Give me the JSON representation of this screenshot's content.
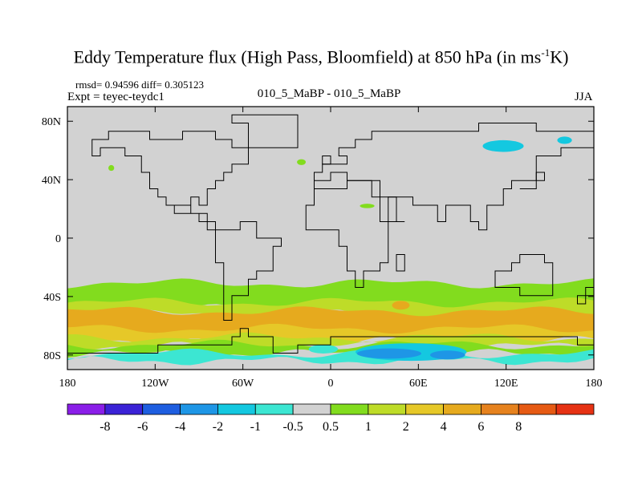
{
  "chart_data": {
    "type": "heatmap",
    "title_main": "Eddy Temperature flux (High Pass, Bloomfield) at 850 hPa (in ms",
    "title_sup": "-1",
    "title_end": "K)",
    "stats": "rmsd= 0.94596 diff= 0.305123",
    "experiment": "Expt = teyec-teydc1",
    "center_label": "010_5_MaBP - 010_5_MaBP",
    "season": "JJA",
    "xlim": [
      -180,
      180
    ],
    "ylim": [
      -90,
      90
    ],
    "x_ticks": [
      {
        "value": -180,
        "label": "180"
      },
      {
        "value": -120,
        "label": "120W"
      },
      {
        "value": -60,
        "label": "60W"
      },
      {
        "value": 0,
        "label": "0"
      },
      {
        "value": 60,
        "label": "60E"
      },
      {
        "value": 120,
        "label": "120E"
      },
      {
        "value": 180,
        "label": "180"
      }
    ],
    "y_ticks": [
      {
        "value": 80,
        "label": "80N"
      },
      {
        "value": 40,
        "label": "40N"
      },
      {
        "value": 0,
        "label": "0"
      },
      {
        "value": -40,
        "label": "40S"
      },
      {
        "value": -80,
        "label": "80S"
      }
    ],
    "colorbar": {
      "colors": [
        "#8a1ee8",
        "#3b22d6",
        "#1e5ee0",
        "#1e96e6",
        "#14c8e0",
        "#3ce6d2",
        "#d2d2d2",
        "#82dc1e",
        "#bedc28",
        "#e6c828",
        "#e6aa1e",
        "#e6821e",
        "#e65a14",
        "#e63214"
      ],
      "labels": [
        "-8",
        "-6",
        "-4",
        "-2",
        "-1",
        "-0.5",
        "0.5",
        "1",
        "2",
        "4",
        "6",
        "8"
      ]
    },
    "bands": [
      {
        "name": "southern-green-band",
        "lat_top": -31,
        "lat_bottom": -48,
        "color": "#82dc1e"
      },
      {
        "name": "southern-yellow-band",
        "lat_top": -44,
        "lat_bottom": -52,
        "color": "#bedc28"
      },
      {
        "name": "southern-orange-band",
        "lat_top": -50,
        "lat_bottom": -66,
        "color": "#e6aa1e"
      },
      {
        "name": "southern-light-orange-band",
        "lat_top": -62,
        "lat_bottom": -70,
        "color": "#e6c828"
      },
      {
        "name": "southern-yellow-green-band",
        "lat_top": -68,
        "lat_bottom": -74,
        "color": "#bedc28"
      },
      {
        "name": "antarctic-green-band",
        "lat_top": -73,
        "lat_bottom": -79,
        "color": "#82dc1e"
      },
      {
        "name": "antarctic-cyan-band",
        "lat_top": -79,
        "lat_bottom": -84,
        "color": "#3ce6d2"
      }
    ],
    "patches": [
      {
        "name": "cyan-negative-siberia",
        "lon": 118,
        "lat": 63,
        "rlon": 14,
        "rlat": 4,
        "color": "#14c8e0"
      },
      {
        "name": "cyan-negative-arctic-east",
        "lon": 160,
        "lat": 67,
        "rlon": 5,
        "rlat": 2.5,
        "color": "#14c8e0"
      },
      {
        "name": "green-positive-north-atlantic",
        "lon": -20,
        "lat": 52,
        "rlon": 3,
        "rlat": 2,
        "color": "#82dc1e"
      },
      {
        "name": "green-positive-north-america",
        "lon": -150,
        "lat": 48,
        "rlon": 2,
        "rlat": 2,
        "color": "#82dc1e"
      },
      {
        "name": "green-positive-mediterranean",
        "lon": 25,
        "lat": 22,
        "rlon": 5,
        "rlat": 1.5,
        "color": "#82dc1e"
      },
      {
        "name": "orange-positive-indian-ocean",
        "lon": 48,
        "lat": -46,
        "rlon": 6,
        "rlat": 3,
        "color": "#e6aa1e"
      },
      {
        "name": "cyan-negative-antarctica",
        "lon": 55,
        "lat": -78,
        "rlon": 38,
        "rlat": 6,
        "color": "#14c8e0"
      },
      {
        "name": "blue-negative-antarctica",
        "lon": 40,
        "lat": -79,
        "rlon": 22,
        "rlat": 3.5,
        "color": "#1e96e6"
      },
      {
        "name": "blue-negative-antarctica-east",
        "lon": 80,
        "lat": -80,
        "rlon": 12,
        "rlat": 3,
        "color": "#1e96e6"
      },
      {
        "name": "cyan-negative-ross-sea",
        "lon": -5,
        "lat": -76,
        "rlon": 10,
        "rlat": 3,
        "color": "#3ce6d2"
      },
      {
        "name": "green-positive-antarctic-coast",
        "lon": -130,
        "lat": -76,
        "rlon": 18,
        "rlat": 2.5,
        "color": "#82dc1e"
      }
    ],
    "continents": [
      {
        "name": "north-america-outline",
        "points": [
          [
            -165,
            66
          ],
          [
            -150,
            71
          ],
          [
            -125,
            70
          ],
          [
            -100,
            74
          ],
          [
            -80,
            70
          ],
          [
            -65,
            60
          ],
          [
            -55,
            52
          ],
          [
            -65,
            45
          ],
          [
            -75,
            40
          ],
          [
            -80,
            32
          ],
          [
            -82,
            25
          ],
          [
            -90,
            29
          ],
          [
            -97,
            25
          ],
          [
            -105,
            20
          ],
          [
            -95,
            16
          ],
          [
            -85,
            12
          ],
          [
            -78,
            8
          ],
          [
            -82,
            9
          ],
          [
            -90,
            15
          ],
          [
            -105,
            22
          ],
          [
            -115,
            30
          ],
          [
            -120,
            36
          ],
          [
            -125,
            45
          ],
          [
            -130,
            55
          ],
          [
            -140,
            60
          ],
          [
            -155,
            58
          ],
          [
            -165,
            62
          ]
        ]
      },
      {
        "name": "south-america-outline",
        "points": [
          [
            -78,
            8
          ],
          [
            -60,
            10
          ],
          [
            -50,
            0
          ],
          [
            -35,
            -7
          ],
          [
            -40,
            -22
          ],
          [
            -48,
            -28
          ],
          [
            -58,
            -38
          ],
          [
            -65,
            -48
          ],
          [
            -70,
            -55
          ],
          [
            -75,
            -50
          ],
          [
            -74,
            -38
          ],
          [
            -72,
            -18
          ],
          [
            -80,
            -5
          ]
        ]
      },
      {
        "name": "greenland-outline",
        "points": [
          [
            -55,
            60
          ],
          [
            -42,
            60
          ],
          [
            -22,
            70
          ],
          [
            -20,
            82
          ],
          [
            -50,
            84
          ],
          [
            -70,
            78
          ],
          [
            -58,
            70
          ]
        ]
      },
      {
        "name": "eurasia-outline",
        "points": [
          [
            -10,
            36
          ],
          [
            -10,
            44
          ],
          [
            -5,
            48
          ],
          [
            5,
            52
          ],
          [
            10,
            58
          ],
          [
            5,
            62
          ],
          [
            15,
            70
          ],
          [
            30,
            71
          ],
          [
            60,
            75
          ],
          [
            100,
            78
          ],
          [
            140,
            74
          ],
          [
            180,
            68
          ],
          [
            180,
            62
          ],
          [
            160,
            58
          ],
          [
            140,
            52
          ],
          [
            140,
            40
          ],
          [
            122,
            32
          ],
          [
            120,
            22
          ],
          [
            108,
            18
          ],
          [
            105,
            8
          ],
          [
            100,
            14
          ],
          [
            95,
            20
          ],
          [
            88,
            22
          ],
          [
            80,
            10
          ],
          [
            72,
            20
          ],
          [
            60,
            25
          ],
          [
            55,
            26
          ],
          [
            50,
            30
          ],
          [
            40,
            14
          ],
          [
            45,
            12
          ],
          [
            35,
            30
          ],
          [
            28,
            37
          ],
          [
            25,
            40
          ],
          [
            10,
            44
          ],
          [
            0,
            38
          ]
        ]
      },
      {
        "name": "africa-outline",
        "points": [
          [
            -17,
            21
          ],
          [
            -10,
            35
          ],
          [
            10,
            37
          ],
          [
            32,
            31
          ],
          [
            35,
            28
          ],
          [
            43,
            12
          ],
          [
            51,
            12
          ],
          [
            40,
            -5
          ],
          [
            40,
            -15
          ],
          [
            35,
            -25
          ],
          [
            20,
            -35
          ],
          [
            15,
            -25
          ],
          [
            12,
            -5
          ],
          [
            8,
            5
          ],
          [
            -10,
            5
          ],
          [
            -17,
            14
          ]
        ]
      },
      {
        "name": "australia-outline",
        "points": [
          [
            114,
            -22
          ],
          [
            125,
            -15
          ],
          [
            132,
            -12
          ],
          [
            137,
            -12
          ],
          [
            142,
            -11
          ],
          [
            145,
            -15
          ],
          [
            153,
            -26
          ],
          [
            150,
            -37
          ],
          [
            140,
            -38
          ],
          [
            130,
            -32
          ],
          [
            115,
            -34
          ]
        ]
      },
      {
        "name": "antarctica-outline",
        "points": [
          [
            -180,
            -78
          ],
          [
            -150,
            -77
          ],
          [
            -120,
            -74
          ],
          [
            -90,
            -72
          ],
          [
            -70,
            -68
          ],
          [
            -60,
            -64
          ],
          [
            -55,
            -66
          ],
          [
            -40,
            -78
          ],
          [
            -20,
            -74
          ],
          [
            0,
            -70
          ],
          [
            30,
            -70
          ],
          [
            60,
            -67
          ],
          [
            90,
            -66
          ],
          [
            120,
            -66
          ],
          [
            150,
            -69
          ],
          [
            170,
            -72
          ],
          [
            180,
            -78
          ],
          [
            180,
            -90
          ],
          [
            -180,
            -90
          ]
        ]
      },
      {
        "name": "madagascar-outline",
        "points": [
          [
            44,
            -25
          ],
          [
            49,
            -15
          ],
          [
            50,
            -13
          ],
          [
            47,
            -25
          ]
        ]
      },
      {
        "name": "new-zealand-outline",
        "points": [
          [
            172,
            -34
          ],
          [
            178,
            -38
          ],
          [
            174,
            -41
          ],
          [
            167,
            -46
          ],
          [
            170,
            -46
          ],
          [
            175,
            -41
          ]
        ]
      },
      {
        "name": "uk-outline",
        "points": [
          [
            -5,
            50
          ],
          [
            2,
            52
          ],
          [
            -2,
            56
          ],
          [
            -5,
            58
          ],
          [
            -6,
            54
          ]
        ]
      },
      {
        "name": "japan-outline",
        "points": [
          [
            130,
            31
          ],
          [
            135,
            34
          ],
          [
            140,
            36
          ],
          [
            142,
            42
          ],
          [
            145,
            44
          ],
          [
            141,
            40
          ],
          [
            138,
            36
          ],
          [
            132,
            33
          ]
        ]
      }
    ]
  }
}
